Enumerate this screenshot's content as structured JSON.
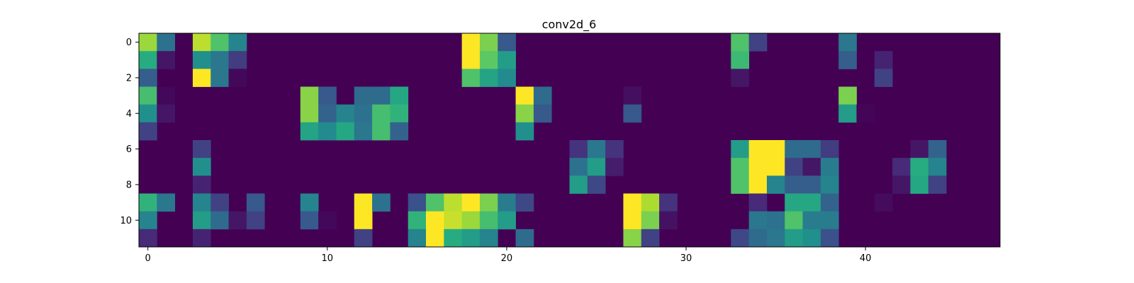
{
  "chart_data": {
    "type": "heatmap",
    "title": "conv2d_6",
    "xlabel": "",
    "ylabel": "",
    "colormap": "viridis",
    "rows": 12,
    "cols": 48,
    "x_ticks": [
      0,
      10,
      20,
      30,
      40
    ],
    "y_ticks": [
      0,
      2,
      4,
      6,
      8,
      10
    ],
    "value_range": [
      0,
      1
    ],
    "cells": [
      [
        0,
        0,
        0.85
      ],
      [
        0,
        1,
        0.38
      ],
      [
        0,
        3,
        0.9
      ],
      [
        0,
        4,
        0.72
      ],
      [
        0,
        5,
        0.45
      ],
      [
        0,
        18,
        1.0
      ],
      [
        0,
        19,
        0.8
      ],
      [
        0,
        20,
        0.28
      ],
      [
        0,
        33,
        0.72
      ],
      [
        0,
        34,
        0.2
      ],
      [
        0,
        39,
        0.4
      ],
      [
        1,
        0,
        0.62
      ],
      [
        1,
        1,
        0.06
      ],
      [
        1,
        3,
        0.5
      ],
      [
        1,
        4,
        0.4
      ],
      [
        1,
        5,
        0.18
      ],
      [
        1,
        18,
        1.0
      ],
      [
        1,
        19,
        0.75
      ],
      [
        1,
        20,
        0.55
      ],
      [
        1,
        33,
        0.68
      ],
      [
        1,
        39,
        0.3
      ],
      [
        1,
        41,
        0.1
      ],
      [
        2,
        0,
        0.3
      ],
      [
        2,
        3,
        1.0
      ],
      [
        2,
        4,
        0.4
      ],
      [
        2,
        5,
        0.02
      ],
      [
        2,
        18,
        0.72
      ],
      [
        2,
        19,
        0.58
      ],
      [
        2,
        20,
        0.48
      ],
      [
        2,
        33,
        0.06
      ],
      [
        2,
        41,
        0.2
      ],
      [
        3,
        0,
        0.7
      ],
      [
        3,
        1,
        0.02
      ],
      [
        3,
        9,
        0.82
      ],
      [
        3,
        10,
        0.28
      ],
      [
        3,
        12,
        0.35
      ],
      [
        3,
        13,
        0.35
      ],
      [
        3,
        14,
        0.6
      ],
      [
        3,
        21,
        1.0
      ],
      [
        3,
        22,
        0.35
      ],
      [
        3,
        27,
        0.04
      ],
      [
        3,
        39,
        0.8
      ],
      [
        4,
        0,
        0.5
      ],
      [
        4,
        1,
        0.06
      ],
      [
        4,
        9,
        0.82
      ],
      [
        4,
        10,
        0.32
      ],
      [
        4,
        11,
        0.45
      ],
      [
        4,
        12,
        0.38
      ],
      [
        4,
        13,
        0.7
      ],
      [
        4,
        14,
        0.65
      ],
      [
        4,
        21,
        0.82
      ],
      [
        4,
        22,
        0.28
      ],
      [
        4,
        27,
        0.28
      ],
      [
        4,
        39,
        0.55
      ],
      [
        4,
        40,
        0.01
      ],
      [
        5,
        0,
        0.2
      ],
      [
        5,
        9,
        0.58
      ],
      [
        5,
        10,
        0.48
      ],
      [
        5,
        11,
        0.6
      ],
      [
        5,
        12,
        0.4
      ],
      [
        5,
        13,
        0.7
      ],
      [
        5,
        14,
        0.32
      ],
      [
        5,
        21,
        0.5
      ],
      [
        6,
        3,
        0.2
      ],
      [
        6,
        24,
        0.15
      ],
      [
        6,
        25,
        0.4
      ],
      [
        6,
        26,
        0.15
      ],
      [
        6,
        33,
        0.55
      ],
      [
        6,
        34,
        1.0
      ],
      [
        6,
        35,
        1.0
      ],
      [
        6,
        36,
        0.35
      ],
      [
        6,
        37,
        0.35
      ],
      [
        6,
        38,
        0.18
      ],
      [
        6,
        43,
        0.06
      ],
      [
        6,
        44,
        0.32
      ],
      [
        7,
        3,
        0.5
      ],
      [
        7,
        24,
        0.38
      ],
      [
        7,
        25,
        0.55
      ],
      [
        7,
        26,
        0.08
      ],
      [
        7,
        33,
        0.72
      ],
      [
        7,
        34,
        1.0
      ],
      [
        7,
        35,
        1.0
      ],
      [
        7,
        36,
        0.2
      ],
      [
        7,
        37,
        0.06
      ],
      [
        7,
        38,
        0.42
      ],
      [
        7,
        42,
        0.12
      ],
      [
        7,
        43,
        0.62
      ],
      [
        7,
        44,
        0.45
      ],
      [
        8,
        3,
        0.1
      ],
      [
        8,
        24,
        0.55
      ],
      [
        8,
        25,
        0.22
      ],
      [
        8,
        33,
        0.72
      ],
      [
        8,
        34,
        1.0
      ],
      [
        8,
        35,
        0.45
      ],
      [
        8,
        36,
        0.3
      ],
      [
        8,
        37,
        0.3
      ],
      [
        8,
        38,
        0.45
      ],
      [
        8,
        42,
        0.06
      ],
      [
        8,
        43,
        0.6
      ],
      [
        8,
        44,
        0.2
      ],
      [
        9,
        0,
        0.65
      ],
      [
        9,
        1,
        0.4
      ],
      [
        9,
        3,
        0.45
      ],
      [
        9,
        4,
        0.2
      ],
      [
        9,
        6,
        0.28
      ],
      [
        9,
        9,
        0.45
      ],
      [
        9,
        12,
        1.0
      ],
      [
        9,
        13,
        0.38
      ],
      [
        9,
        15,
        0.25
      ],
      [
        9,
        16,
        0.72
      ],
      [
        9,
        17,
        0.9
      ],
      [
        9,
        18,
        1.0
      ],
      [
        9,
        19,
        0.8
      ],
      [
        9,
        20,
        0.42
      ],
      [
        9,
        21,
        0.22
      ],
      [
        9,
        27,
        1.0
      ],
      [
        9,
        28,
        0.88
      ],
      [
        9,
        29,
        0.15
      ],
      [
        9,
        34,
        0.12
      ],
      [
        9,
        36,
        0.6
      ],
      [
        9,
        37,
        0.6
      ],
      [
        9,
        38,
        0.32
      ],
      [
        9,
        41,
        0.03
      ],
      [
        10,
        0,
        0.45
      ],
      [
        10,
        3,
        0.55
      ],
      [
        10,
        4,
        0.35
      ],
      [
        10,
        5,
        0.06
      ],
      [
        10,
        6,
        0.2
      ],
      [
        10,
        9,
        0.28
      ],
      [
        10,
        10,
        0.02
      ],
      [
        10,
        12,
        1.0
      ],
      [
        10,
        15,
        0.65
      ],
      [
        10,
        16,
        1.0
      ],
      [
        10,
        17,
        0.92
      ],
      [
        10,
        18,
        0.85
      ],
      [
        10,
        19,
        0.7
      ],
      [
        10,
        20,
        0.55
      ],
      [
        10,
        27,
        1.0
      ],
      [
        10,
        28,
        0.8
      ],
      [
        10,
        29,
        0.05
      ],
      [
        10,
        34,
        0.4
      ],
      [
        10,
        35,
        0.38
      ],
      [
        10,
        36,
        0.72
      ],
      [
        10,
        37,
        0.42
      ],
      [
        10,
        38,
        0.42
      ],
      [
        11,
        0,
        0.12
      ],
      [
        11,
        3,
        0.1
      ],
      [
        11,
        12,
        0.2
      ],
      [
        11,
        15,
        0.45
      ],
      [
        11,
        16,
        1.0
      ],
      [
        11,
        17,
        0.62
      ],
      [
        11,
        18,
        0.55
      ],
      [
        11,
        19,
        0.45
      ],
      [
        11,
        21,
        0.35
      ],
      [
        11,
        27,
        0.82
      ],
      [
        11,
        28,
        0.2
      ],
      [
        11,
        33,
        0.22
      ],
      [
        11,
        34,
        0.35
      ],
      [
        11,
        35,
        0.4
      ],
      [
        11,
        36,
        0.55
      ],
      [
        11,
        37,
        0.5
      ],
      [
        11,
        38,
        0.25
      ]
    ]
  }
}
